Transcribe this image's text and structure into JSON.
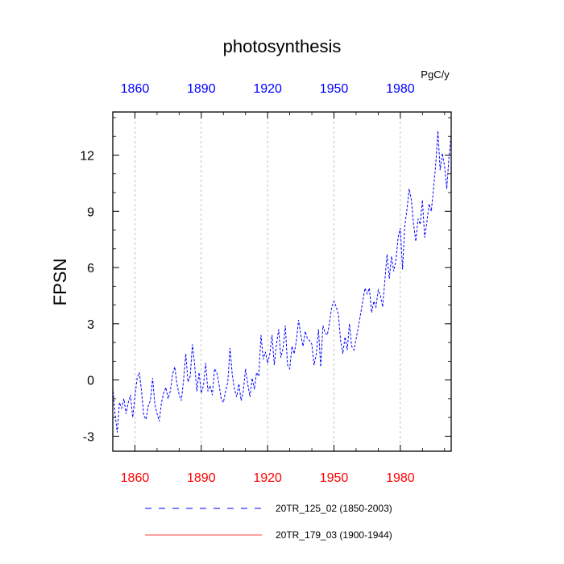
{
  "chart_data": {
    "type": "line",
    "title": "photosynthesis",
    "units": "PgC/y",
    "ylabel": "FPSN",
    "xlabel": "",
    "xlim": [
      1850,
      2003
    ],
    "ylim": [
      -3.8,
      14.3
    ],
    "xticks": [
      1860,
      1890,
      1920,
      1950,
      1980
    ],
    "xtick_labels": [
      "1860",
      "1890",
      "1920",
      "1950",
      "1980"
    ],
    "yticks": [
      -3,
      0,
      3,
      6,
      9,
      12
    ],
    "ytick_labels": [
      "-3",
      "0",
      "3",
      "6",
      "9",
      "12"
    ],
    "grid": "vertical dashed at x ticks",
    "colors": {
      "series_blue": "#0000ff",
      "series_red": "#ff0000",
      "top_axis_labels": "#0000ff",
      "bottom_axis_labels": "#ff0000",
      "grid": "#999999",
      "frame": "#000000"
    },
    "series": [
      {
        "name": "20TR_125_02 (1850-2003)",
        "color": "#0000ff",
        "style": "dashed",
        "x": [
          1850,
          1851,
          1852,
          1853,
          1854,
          1855,
          1856,
          1857,
          1858,
          1859,
          1860,
          1861,
          1862,
          1863,
          1864,
          1865,
          1866,
          1867,
          1868,
          1869,
          1870,
          1871,
          1872,
          1873,
          1874,
          1875,
          1876,
          1877,
          1878,
          1879,
          1880,
          1881,
          1882,
          1883,
          1884,
          1885,
          1886,
          1887,
          1888,
          1889,
          1890,
          1891,
          1892,
          1893,
          1894,
          1895,
          1896,
          1897,
          1898,
          1899,
          1900,
          1901,
          1902,
          1903,
          1904,
          1905,
          1906,
          1907,
          1908,
          1909,
          1910,
          1911,
          1912,
          1913,
          1914,
          1915,
          1916,
          1917,
          1918,
          1919,
          1920,
          1921,
          1922,
          1923,
          1924,
          1925,
          1926,
          1927,
          1928,
          1929,
          1930,
          1931,
          1932,
          1933,
          1934,
          1935,
          1936,
          1937,
          1938,
          1939,
          1940,
          1941,
          1942,
          1943,
          1944,
          1945,
          1946,
          1947,
          1948,
          1949,
          1950,
          1951,
          1952,
          1953,
          1954,
          1955,
          1956,
          1957,
          1958,
          1959,
          1960,
          1961,
          1962,
          1963,
          1964,
          1965,
          1966,
          1967,
          1968,
          1969,
          1970,
          1971,
          1972,
          1973,
          1974,
          1975,
          1976,
          1977,
          1978,
          1979,
          1980,
          1981,
          1982,
          1983,
          1984,
          1985,
          1986,
          1987,
          1988,
          1989,
          1990,
          1991,
          1992,
          1993,
          1994,
          1995,
          1996,
          1997,
          1998,
          1999,
          2000,
          2001,
          2002,
          2003
        ],
        "values": [
          -0.4,
          -1.8,
          -2.8,
          -1.2,
          -1.5,
          -1.0,
          -1.8,
          -1.2,
          -0.8,
          -2.0,
          -0.9,
          0.1,
          0.4,
          -0.6,
          -1.9,
          -2.1,
          -1.4,
          -1.1,
          0.1,
          -1.3,
          -1.8,
          -2.2,
          -1.2,
          -0.7,
          -0.4,
          -1.0,
          -0.6,
          0.3,
          0.7,
          -0.2,
          -0.8,
          -1.1,
          0.0,
          1.4,
          -0.1,
          0.2,
          1.9,
          0.8,
          -0.6,
          0.4,
          -0.7,
          -0.3,
          0.9,
          -0.6,
          -0.3,
          -0.8,
          0.6,
          0.4,
          -0.2,
          -1.0,
          -1.2,
          -0.6,
          -0.1,
          1.7,
          0.3,
          -0.5,
          -0.9,
          -0.2,
          -1.1,
          -0.6,
          0.6,
          -0.2,
          -0.9,
          0.1,
          -0.5,
          0.4,
          0.2,
          2.4,
          1.1,
          1.5,
          0.9,
          1.4,
          2.4,
          0.8,
          1.9,
          2.7,
          1.2,
          1.7,
          2.9,
          0.8,
          0.6,
          1.8,
          1.4,
          2.1,
          3.2,
          2.4,
          1.8,
          2.6,
          2.2,
          2.1,
          1.9,
          0.8,
          1.4,
          2.7,
          0.7,
          2.9,
          2.5,
          2.4,
          3.1,
          3.9,
          4.2,
          3.9,
          3.5,
          2.1,
          1.4,
          2.3,
          1.6,
          3.0,
          1.8,
          1.6,
          2.2,
          2.8,
          3.5,
          4.2,
          4.9,
          4.6,
          4.9,
          3.6,
          4.2,
          3.9,
          4.8,
          4.5,
          3.9,
          5.3,
          6.7,
          5.4,
          6.6,
          5.8,
          6.4,
          7.6,
          8.1,
          5.9,
          8.2,
          9.1,
          10.2,
          9.6,
          8.3,
          7.4,
          8.6,
          8.3,
          9.6,
          7.6,
          8.4,
          9.4,
          9.0,
          10.2,
          11.5,
          13.3,
          11.2,
          12.1,
          11.4,
          10.2,
          11.9,
          13.1
        ],
        "period": "1850-2003"
      },
      {
        "name": "20TR_179_03 (1900-1944)",
        "color": "#ff0000",
        "style": "solid",
        "x": [],
        "values": [],
        "period": "1900-1944"
      }
    ],
    "legend_position": "bottom"
  }
}
